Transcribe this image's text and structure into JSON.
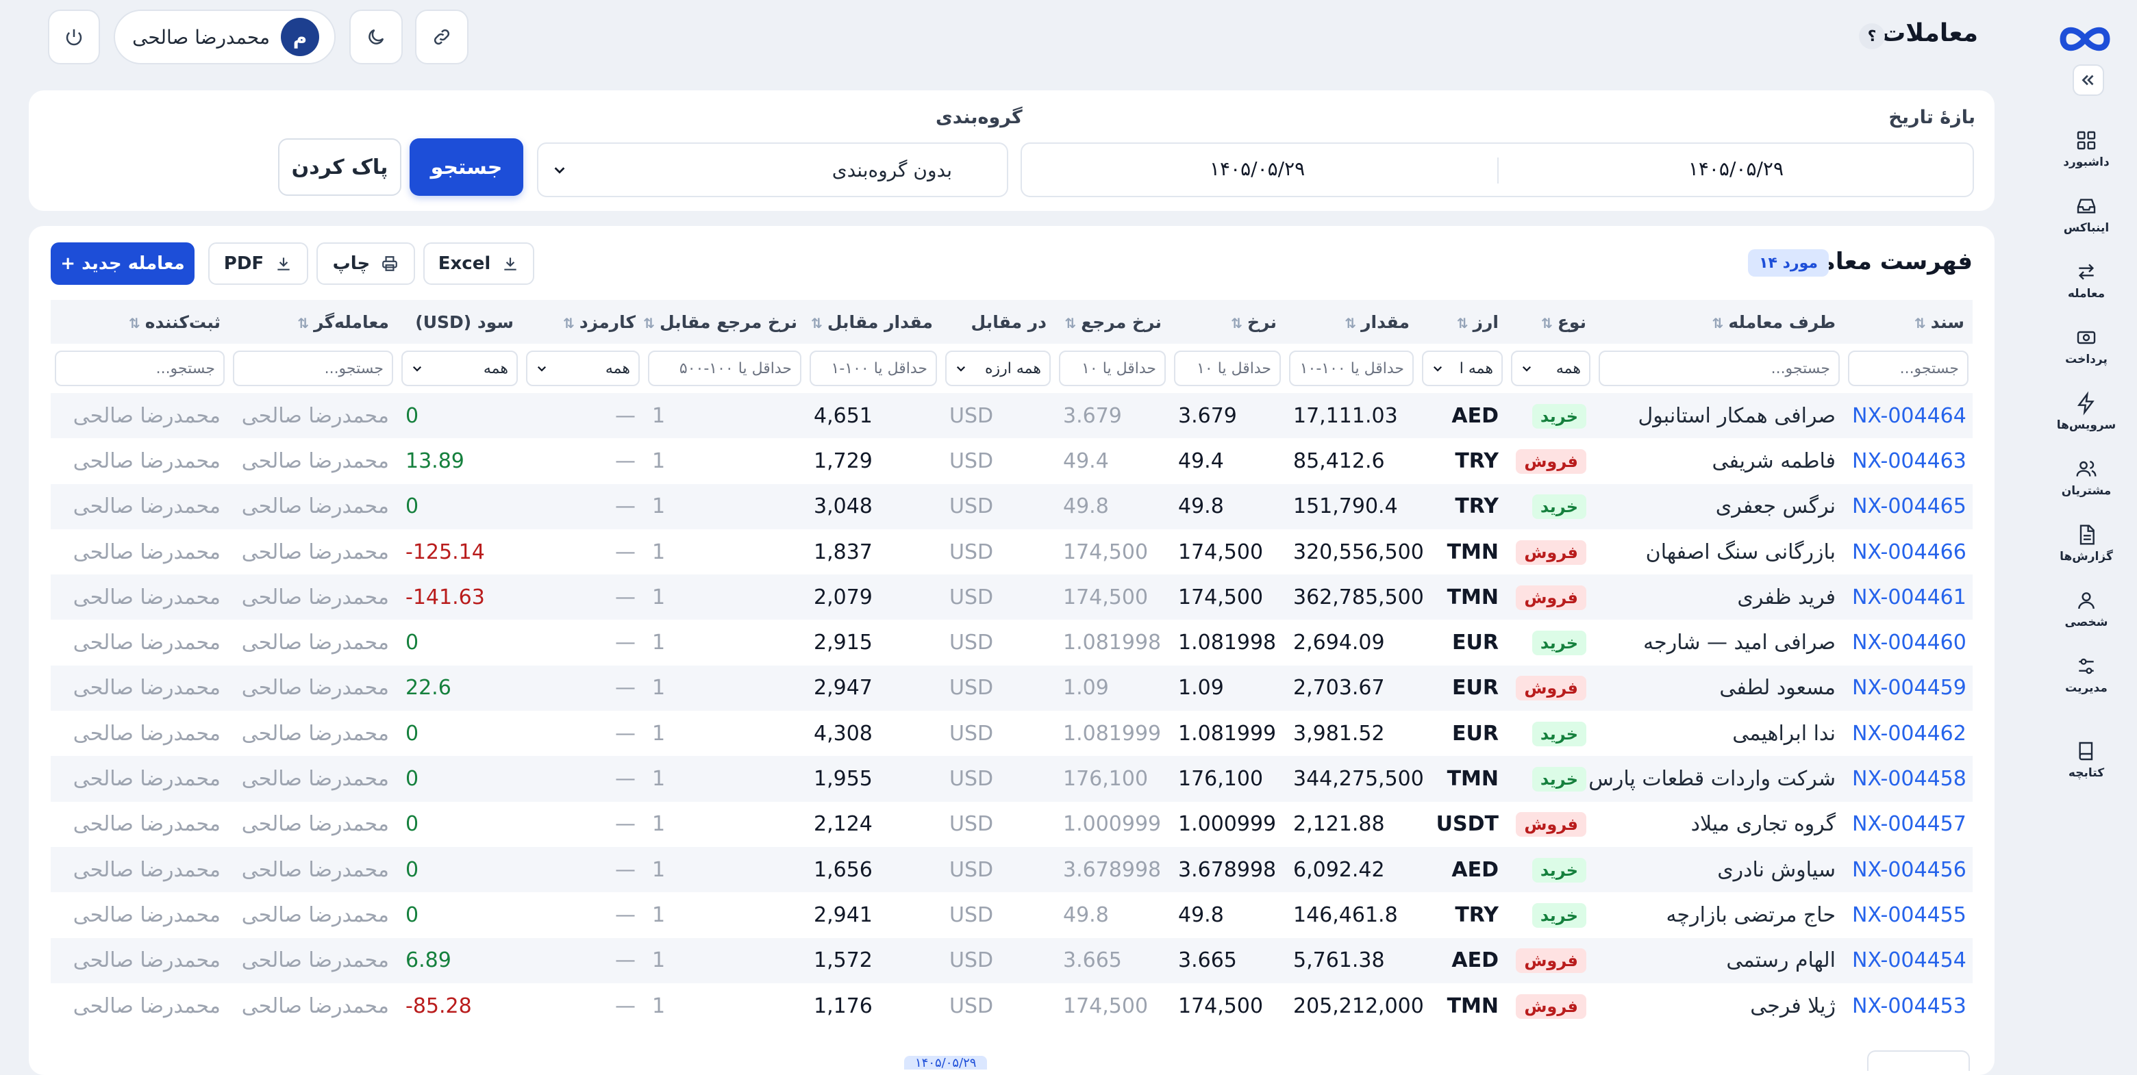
{
  "header": {
    "title": "معاملات",
    "help": "؟",
    "user": {
      "name": "محمدرضا صالحی",
      "initial": "م"
    }
  },
  "sidebar": {
    "items": [
      {
        "label": "داشبورد",
        "icon": "dashboard-icon"
      },
      {
        "label": "اینباکس",
        "icon": "inbox-icon"
      },
      {
        "label": "معامله",
        "icon": "transfer-icon"
      },
      {
        "label": "پرداخت",
        "icon": "payment-icon"
      },
      {
        "label": "سرویس‌ها",
        "icon": "bolt-icon"
      },
      {
        "label": "مشتریان",
        "icon": "customers-icon"
      },
      {
        "label": "گزارش‌ها",
        "icon": "reports-icon"
      },
      {
        "label": "شخصی",
        "icon": "person-icon"
      },
      {
        "label": "مدیریت",
        "icon": "sliders-icon"
      },
      {
        "label": "کتابچه",
        "icon": "book-icon"
      }
    ]
  },
  "filters": {
    "date_range_label": "بازهٔ تاریخ",
    "date_from": "۱۴۰۵/۰۵/۲۹",
    "date_to": "۱۴۰۵/۰۵/۲۹",
    "grouping_label": "گروه‌بندی",
    "grouping_value": "بدون گروه‌بندی",
    "search_button": "جستجو",
    "clear_button": "پاک کردن"
  },
  "list": {
    "title": "فهرست معاملات",
    "count": "۱۴ مورد",
    "excel": "Excel",
    "print": "چاپ",
    "pdf": "PDF",
    "new": "+ معامله جدید"
  },
  "columns": [
    "سند",
    "طرف معامله",
    "نوع",
    "ارز",
    "مقدار",
    "نرخ",
    "نرخ مرجع",
    "در مقابل",
    "مقدار مقابل",
    "نرخ مرجع مقابل",
    "کارمزد",
    "سود (USD)",
    "معامله‌گر",
    "ثبت‌کننده"
  ],
  "column_filters": [
    "جستجو...",
    "جستجو...",
    "همه",
    "همه ا",
    "حداقل یا ۱۰۰-۱۰",
    "حداقل یا ۱۰",
    "حداقل یا ۱۰",
    "همه ارزه",
    "حداقل یا ۱۰۰-۱",
    "حداقل یا ۱۰۰-۵۰۰",
    "همه",
    "همه",
    "جستجو...",
    "جستجو..."
  ],
  "rows": [
    {
      "doc": "NX-004464",
      "party": "صرافی همکار استانبول",
      "type": "خرید",
      "kind": "buy",
      "cur": "AED",
      "amount": "17,111.03",
      "rate": "3.679",
      "ref": "3.679",
      "vs": "USD",
      "vs_amount": "4,651",
      "vs_ref": "1",
      "fee": "—",
      "profit": "0",
      "psign": "zero",
      "trader": "محمدرضا صالحی",
      "recorder": "محمدرضا صالحی"
    },
    {
      "doc": "NX-004463",
      "party": "فاطمه شریفی",
      "type": "فروش",
      "kind": "sell",
      "cur": "TRY",
      "amount": "85,412.6",
      "rate": "49.4",
      "ref": "49.4",
      "vs": "USD",
      "vs_amount": "1,729",
      "vs_ref": "1",
      "fee": "—",
      "profit": "13.89",
      "psign": "pos",
      "trader": "محمدرضا صالحی",
      "recorder": "محمدرضا صالحی"
    },
    {
      "doc": "NX-004465",
      "party": "نرگس جعفری",
      "type": "خرید",
      "kind": "buy",
      "cur": "TRY",
      "amount": "151,790.4",
      "rate": "49.8",
      "ref": "49.8",
      "vs": "USD",
      "vs_amount": "3,048",
      "vs_ref": "1",
      "fee": "—",
      "profit": "0",
      "psign": "zero",
      "trader": "محمدرضا صالحی",
      "recorder": "محمدرضا صالحی"
    },
    {
      "doc": "NX-004466",
      "party": "بازرگانی سنگ اصفهان",
      "type": "فروش",
      "kind": "sell",
      "cur": "TMN",
      "amount": "320,556,500",
      "rate": "174,500",
      "ref": "174,500",
      "vs": "USD",
      "vs_amount": "1,837",
      "vs_ref": "1",
      "fee": "—",
      "profit": "-125.14",
      "psign": "neg",
      "trader": "محمدرضا صالحی",
      "recorder": "محمدرضا صالحی"
    },
    {
      "doc": "NX-004461",
      "party": "فرید ظفری",
      "type": "فروش",
      "kind": "sell",
      "cur": "TMN",
      "amount": "362,785,500",
      "rate": "174,500",
      "ref": "174,500",
      "vs": "USD",
      "vs_amount": "2,079",
      "vs_ref": "1",
      "fee": "—",
      "profit": "-141.63",
      "psign": "neg",
      "trader": "محمدرضا صالحی",
      "recorder": "محمدرضا صالحی"
    },
    {
      "doc": "NX-004460",
      "party": "صرافی امید — شارجه",
      "type": "خرید",
      "kind": "buy",
      "cur": "EUR",
      "amount": "2,694.09",
      "rate": "1.081998",
      "ref": "1.081998",
      "vs": "USD",
      "vs_amount": "2,915",
      "vs_ref": "1",
      "fee": "—",
      "profit": "0",
      "psign": "zero",
      "trader": "محمدرضا صالحی",
      "recorder": "محمدرضا صالحی"
    },
    {
      "doc": "NX-004459",
      "party": "مسعود لطفی",
      "type": "فروش",
      "kind": "sell",
      "cur": "EUR",
      "amount": "2,703.67",
      "rate": "1.09",
      "ref": "1.09",
      "vs": "USD",
      "vs_amount": "2,947",
      "vs_ref": "1",
      "fee": "—",
      "profit": "22.6",
      "psign": "pos",
      "trader": "محمدرضا صالحی",
      "recorder": "محمدرضا صالحی"
    },
    {
      "doc": "NX-004462",
      "party": "ندا ابراهیمی",
      "type": "خرید",
      "kind": "buy",
      "cur": "EUR",
      "amount": "3,981.52",
      "rate": "1.081999",
      "ref": "1.081999",
      "vs": "USD",
      "vs_amount": "4,308",
      "vs_ref": "1",
      "fee": "—",
      "profit": "0",
      "psign": "zero",
      "trader": "محمدرضا صالحی",
      "recorder": "محمدرضا صالحی"
    },
    {
      "doc": "NX-004458",
      "party": "شرکت واردات قطعات پارس",
      "type": "خرید",
      "kind": "buy",
      "cur": "TMN",
      "amount": "344,275,500",
      "rate": "176,100",
      "ref": "176,100",
      "vs": "USD",
      "vs_amount": "1,955",
      "vs_ref": "1",
      "fee": "—",
      "profit": "0",
      "psign": "zero",
      "trader": "محمدرضا صالحی",
      "recorder": "محمدرضا صالحی"
    },
    {
      "doc": "NX-004457",
      "party": "گروه تجاری میلاد",
      "type": "فروش",
      "kind": "sell",
      "cur": "USDT",
      "amount": "2,121.88",
      "rate": "1.000999",
      "ref": "1.000999",
      "vs": "USD",
      "vs_amount": "2,124",
      "vs_ref": "1",
      "fee": "—",
      "profit": "0",
      "psign": "zero",
      "trader": "محمدرضا صالحی",
      "recorder": "محمدرضا صالحی"
    },
    {
      "doc": "NX-004456",
      "party": "سیاوش نادری",
      "type": "خرید",
      "kind": "buy",
      "cur": "AED",
      "amount": "6,092.42",
      "rate": "3.678998",
      "ref": "3.678998",
      "vs": "USD",
      "vs_amount": "1,656",
      "vs_ref": "1",
      "fee": "—",
      "profit": "0",
      "psign": "zero",
      "trader": "محمدرضا صالحی",
      "recorder": "محمدرضا صالحی"
    },
    {
      "doc": "NX-004455",
      "party": "حاج مرتضی بازارچه",
      "type": "خرید",
      "kind": "buy",
      "cur": "TRY",
      "amount": "146,461.8",
      "rate": "49.8",
      "ref": "49.8",
      "vs": "USD",
      "vs_amount": "2,941",
      "vs_ref": "1",
      "fee": "—",
      "profit": "0",
      "psign": "zero",
      "trader": "محمدرضا صالحی",
      "recorder": "محمدرضا صالحی"
    },
    {
      "doc": "NX-004454",
      "party": "الهام رستمی",
      "type": "فروش",
      "kind": "sell",
      "cur": "AED",
      "amount": "5,761.38",
      "rate": "3.665",
      "ref": "3.665",
      "vs": "USD",
      "vs_amount": "1,572",
      "vs_ref": "1",
      "fee": "—",
      "profit": "6.89",
      "psign": "pos",
      "trader": "محمدرضا صالحی",
      "recorder": "محمدرضا صالحی"
    },
    {
      "doc": "NX-004453",
      "party": "ژیلا فرجی",
      "type": "فروش",
      "kind": "sell",
      "cur": "TMN",
      "amount": "205,212,000",
      "rate": "174,500",
      "ref": "174,500",
      "vs": "USD",
      "vs_amount": "1,176",
      "vs_ref": "1",
      "fee": "—",
      "profit": "-85.28",
      "psign": "neg",
      "trader": "محمدرضا صالحی",
      "recorder": "محمدرضا صالحی"
    }
  ],
  "footer": {
    "chip": "۱۴۰۵/۰۵/۲۹"
  },
  "colors": {
    "primary": "#1d4ed8",
    "buy": "#15803d",
    "sell": "#b91c1c",
    "link": "#2563eb"
  }
}
